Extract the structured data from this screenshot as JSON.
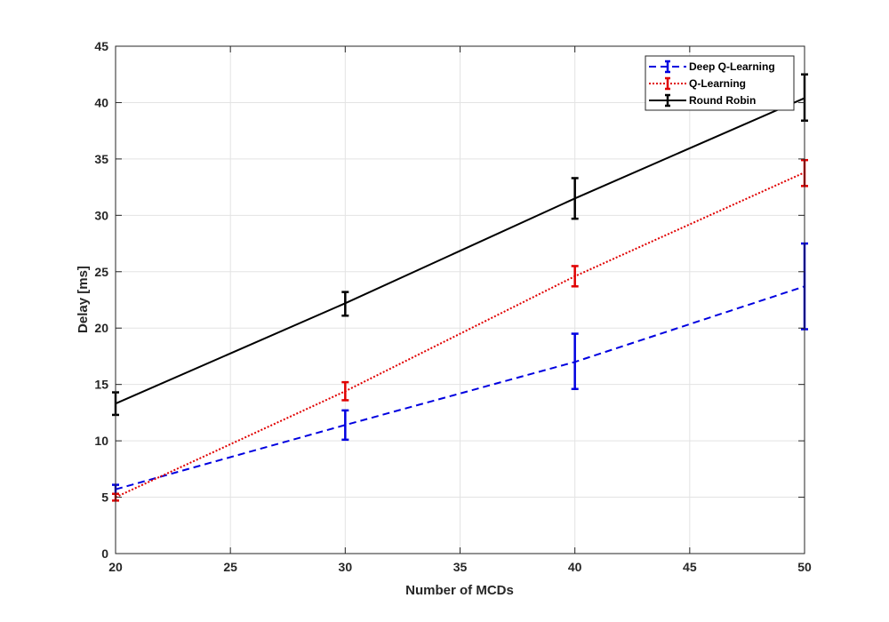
{
  "chart_data": {
    "type": "line",
    "title": "",
    "xlabel": "Number of MCDs",
    "ylabel": "Delay [ms]",
    "xlim": [
      20,
      50
    ],
    "ylim": [
      0,
      45
    ],
    "x_ticks": [
      "20",
      "25",
      "30",
      "35",
      "40",
      "45",
      "50"
    ],
    "y_ticks": [
      "0",
      "5",
      "10",
      "15",
      "20",
      "25",
      "30",
      "35",
      "40",
      "45"
    ],
    "grid": true,
    "legend_position": "top-right",
    "x": [
      20,
      30,
      40,
      50
    ],
    "series": [
      {
        "name": "Deep Q-Learning",
        "values": [
          5.7,
          11.4,
          17.0,
          23.7
        ],
        "err_low": [
          5.3,
          10.1,
          14.6,
          19.9
        ],
        "err_high": [
          6.1,
          12.7,
          19.5,
          27.5
        ],
        "color": "#0000e0",
        "line_style": "dashed"
      },
      {
        "name": "Q-Learning",
        "values": [
          5.0,
          14.4,
          24.6,
          33.8
        ],
        "err_low": [
          4.7,
          13.6,
          23.7,
          32.6
        ],
        "err_high": [
          5.3,
          15.2,
          25.5,
          34.9
        ],
        "color": "#e00000",
        "line_style": "dotted"
      },
      {
        "name": "Round Robin",
        "values": [
          13.3,
          22.2,
          31.5,
          40.4
        ],
        "err_low": [
          12.3,
          21.1,
          29.7,
          38.4
        ],
        "err_high": [
          14.3,
          23.2,
          33.3,
          42.5
        ],
        "color": "#000000",
        "line_style": "solid"
      }
    ]
  }
}
